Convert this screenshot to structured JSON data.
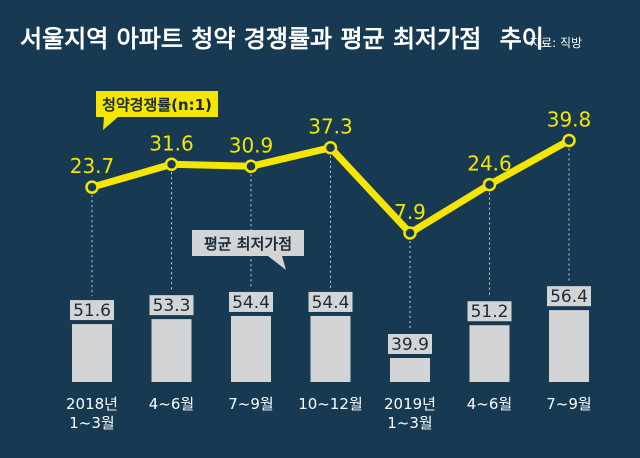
{
  "chart_data": {
    "type": "bar+line",
    "title": "서울지역 아파트 청약 경쟁률과 평균 최저가점",
    "title_suffix": "추이",
    "source": "자료: 직방",
    "categories": [
      [
        "2018년",
        "1~3월"
      ],
      [
        "4~6월"
      ],
      [
        "7~9월"
      ],
      [
        "10~12월"
      ],
      [
        "2019년",
        "1~3월"
      ],
      [
        "4~6월"
      ],
      [
        "7~9월"
      ]
    ],
    "series": [
      {
        "name": "청약경쟁률(n:1)",
        "type": "line",
        "values": [
          23.7,
          31.6,
          30.9,
          37.3,
          7.9,
          24.6,
          39.8
        ],
        "color": "#f5e600"
      },
      {
        "name": "평균 최저가점",
        "type": "bar",
        "values": [
          51.6,
          53.3,
          54.4,
          54.4,
          39.9,
          51.2,
          56.4
        ],
        "color": "#d3d4d6"
      }
    ],
    "colors": {
      "background": "#173a52",
      "line": "#f5e600",
      "bar": "#d3d4d6",
      "label_box": "#f5e600",
      "bar_label_box": "#d3d4d6"
    }
  }
}
